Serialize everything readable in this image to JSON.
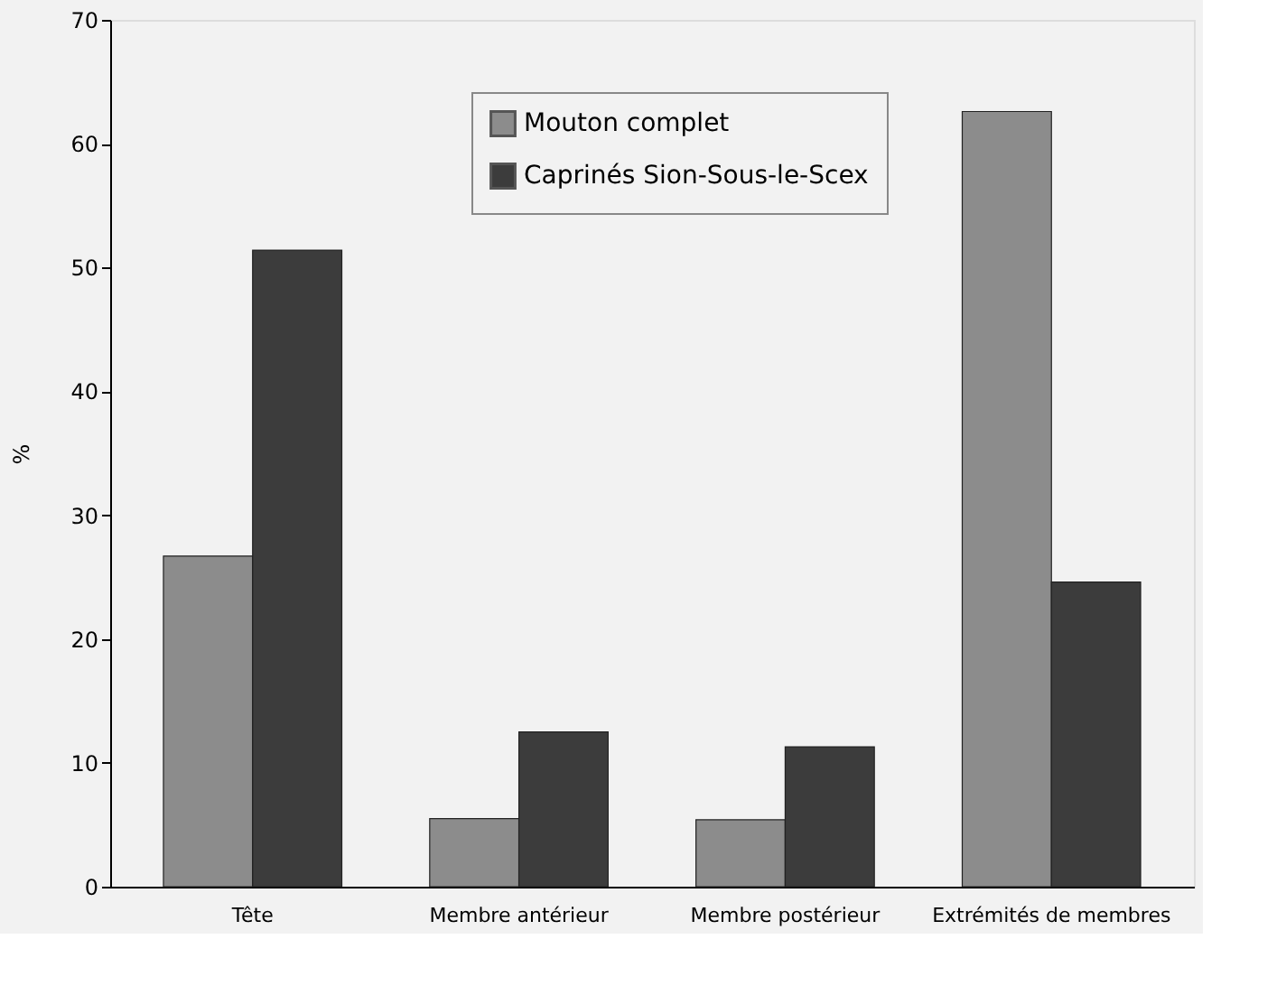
{
  "chart_data": {
    "type": "bar",
    "ylabel": "%",
    "categories": [
      "Tête",
      "Membre antérieur",
      "Membre postérieur",
      "Extrémités de membres"
    ],
    "series": [
      {
        "name": "Mouton complet",
        "color": "#8c8c8c",
        "values": [
          26.7,
          5.5,
          5.4,
          62.6
        ]
      },
      {
        "name": "Caprinés Sion-Sous-le-Scex",
        "color": "#3c3c3c",
        "values": [
          51.4,
          12.5,
          11.3,
          24.6
        ]
      }
    ],
    "ylim": [
      0,
      70
    ],
    "yticks": [
      0,
      10,
      20,
      30,
      40,
      50,
      60,
      70
    ],
    "grid": false,
    "legend": "top"
  }
}
